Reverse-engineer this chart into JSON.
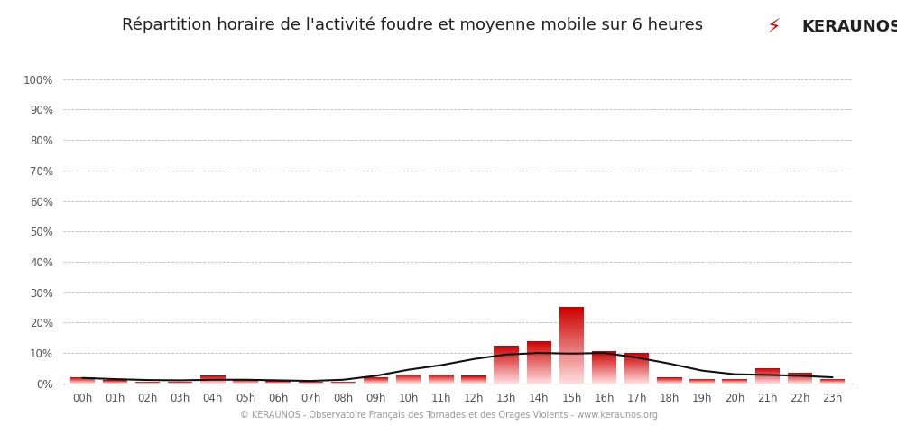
{
  "title": "Répartition horaire de l'activité foudre et moyenne mobile sur 6 heures",
  "hours": [
    "00h",
    "01h",
    "02h",
    "03h",
    "04h",
    "05h",
    "06h",
    "07h",
    "08h",
    "09h",
    "10h",
    "11h",
    "12h",
    "13h",
    "14h",
    "15h",
    "16h",
    "17h",
    "18h",
    "19h",
    "20h",
    "21h",
    "22h",
    "23h"
  ],
  "bar_values": [
    2.0,
    1.0,
    0.5,
    0.5,
    2.5,
    1.2,
    0.7,
    0.5,
    0.5,
    2.0,
    3.0,
    3.0,
    2.5,
    12.5,
    14.0,
    25.0,
    10.5,
    10.0,
    2.0,
    1.5,
    1.5,
    5.0,
    3.5,
    1.5
  ],
  "moving_avg": [
    1.8,
    1.4,
    1.1,
    1.0,
    1.2,
    1.2,
    1.0,
    0.8,
    1.2,
    2.5,
    4.5,
    6.0,
    8.0,
    9.5,
    10.0,
    9.8,
    10.0,
    8.5,
    6.5,
    4.2,
    3.0,
    2.8,
    2.5,
    2.0
  ],
  "bar_color_top": "#cc0000",
  "bar_color_bottom": "#ffdddd",
  "line_color": "#111111",
  "background_color": "#ffffff",
  "plot_bg_color": "#ffffff",
  "grid_color": "#bbbbbb",
  "ytick_labels": [
    "0%",
    "10%",
    "20%",
    "30%",
    "40%",
    "50%",
    "60%",
    "70%",
    "80%",
    "90%",
    "100%"
  ],
  "ytick_values": [
    0,
    10,
    20,
    30,
    40,
    50,
    60,
    70,
    80,
    90,
    100
  ],
  "ylim": [
    0,
    105
  ],
  "tick_color": "#555555",
  "footer_text": "© KERAUNOS - Observatoire Français des Tornades et des Orages Violents - www.keraunos.org",
  "logo_text": "KERAUNOS",
  "title_fontsize": 13,
  "tick_fontsize": 8.5,
  "footer_fontsize": 7,
  "logo_fontsize": 13
}
